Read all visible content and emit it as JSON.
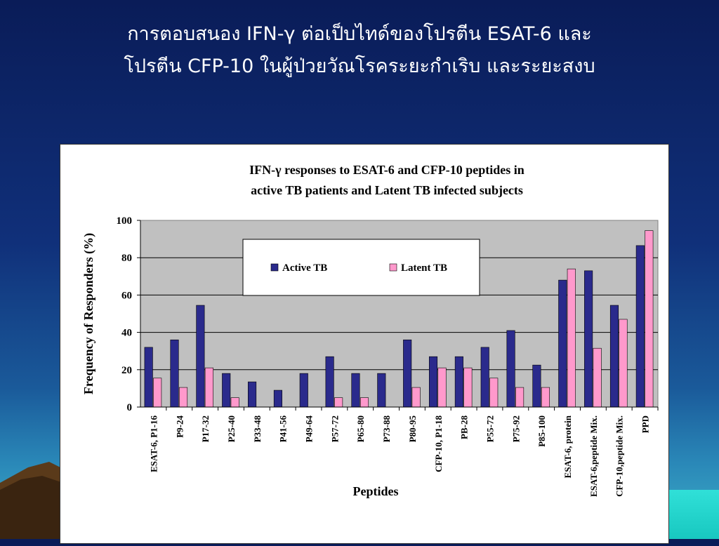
{
  "slide": {
    "title_line1": "การตอบสนอง IFN-γ ต่อเป็บไทด์ของโปรตีน ESAT-6 และ",
    "title_line2": "โปรตีน CFP-10  ในผู้ป่วยวัณโรคระยะกำเริบ และระยะสงบ"
  },
  "chart_data": {
    "type": "bar",
    "title_line1": "IFN-γ  responses to ESAT-6 and CFP-10 peptides in",
    "title_line2": "active TB patients and Latent TB infected subjects",
    "xlabel": "Peptides",
    "ylabel": "Frequency of Responders (%)",
    "ylim": [
      0,
      100
    ],
    "yticks": [
      0,
      20,
      40,
      60,
      80,
      100
    ],
    "grid": true,
    "legend_position": "top-left",
    "categories": [
      "ESAT-6, P1-16",
      "P9-24",
      "P17-32",
      "P25-40",
      "P33-48",
      "P41-56",
      "P49-64",
      "P57-72",
      "P65-80",
      "P73-88",
      "P80-95",
      "CFP-10, P1-18",
      "PB-28",
      "P55-72",
      "P75-92",
      "P85-100",
      "ESAT-6, protein",
      "ESAT-6,peptide Mix.",
      "CFP-10,peptide Mix.",
      "PPD"
    ],
    "series": [
      {
        "name": "Active TB",
        "color": "#2a2a8c",
        "values": [
          32,
          36,
          54.5,
          18,
          13.5,
          9,
          18,
          27,
          18,
          18,
          36,
          27,
          27,
          32,
          41,
          22.5,
          68,
          73,
          54.5,
          86.5
        ]
      },
      {
        "name": "Latent TB",
        "color": "#ff99cc",
        "values": [
          15.5,
          10.5,
          21,
          5,
          0,
          0,
          0,
          5,
          5,
          0,
          10.5,
          21,
          21,
          15.5,
          10.5,
          10.5,
          74,
          31.5,
          47,
          94.5
        ]
      }
    ]
  }
}
